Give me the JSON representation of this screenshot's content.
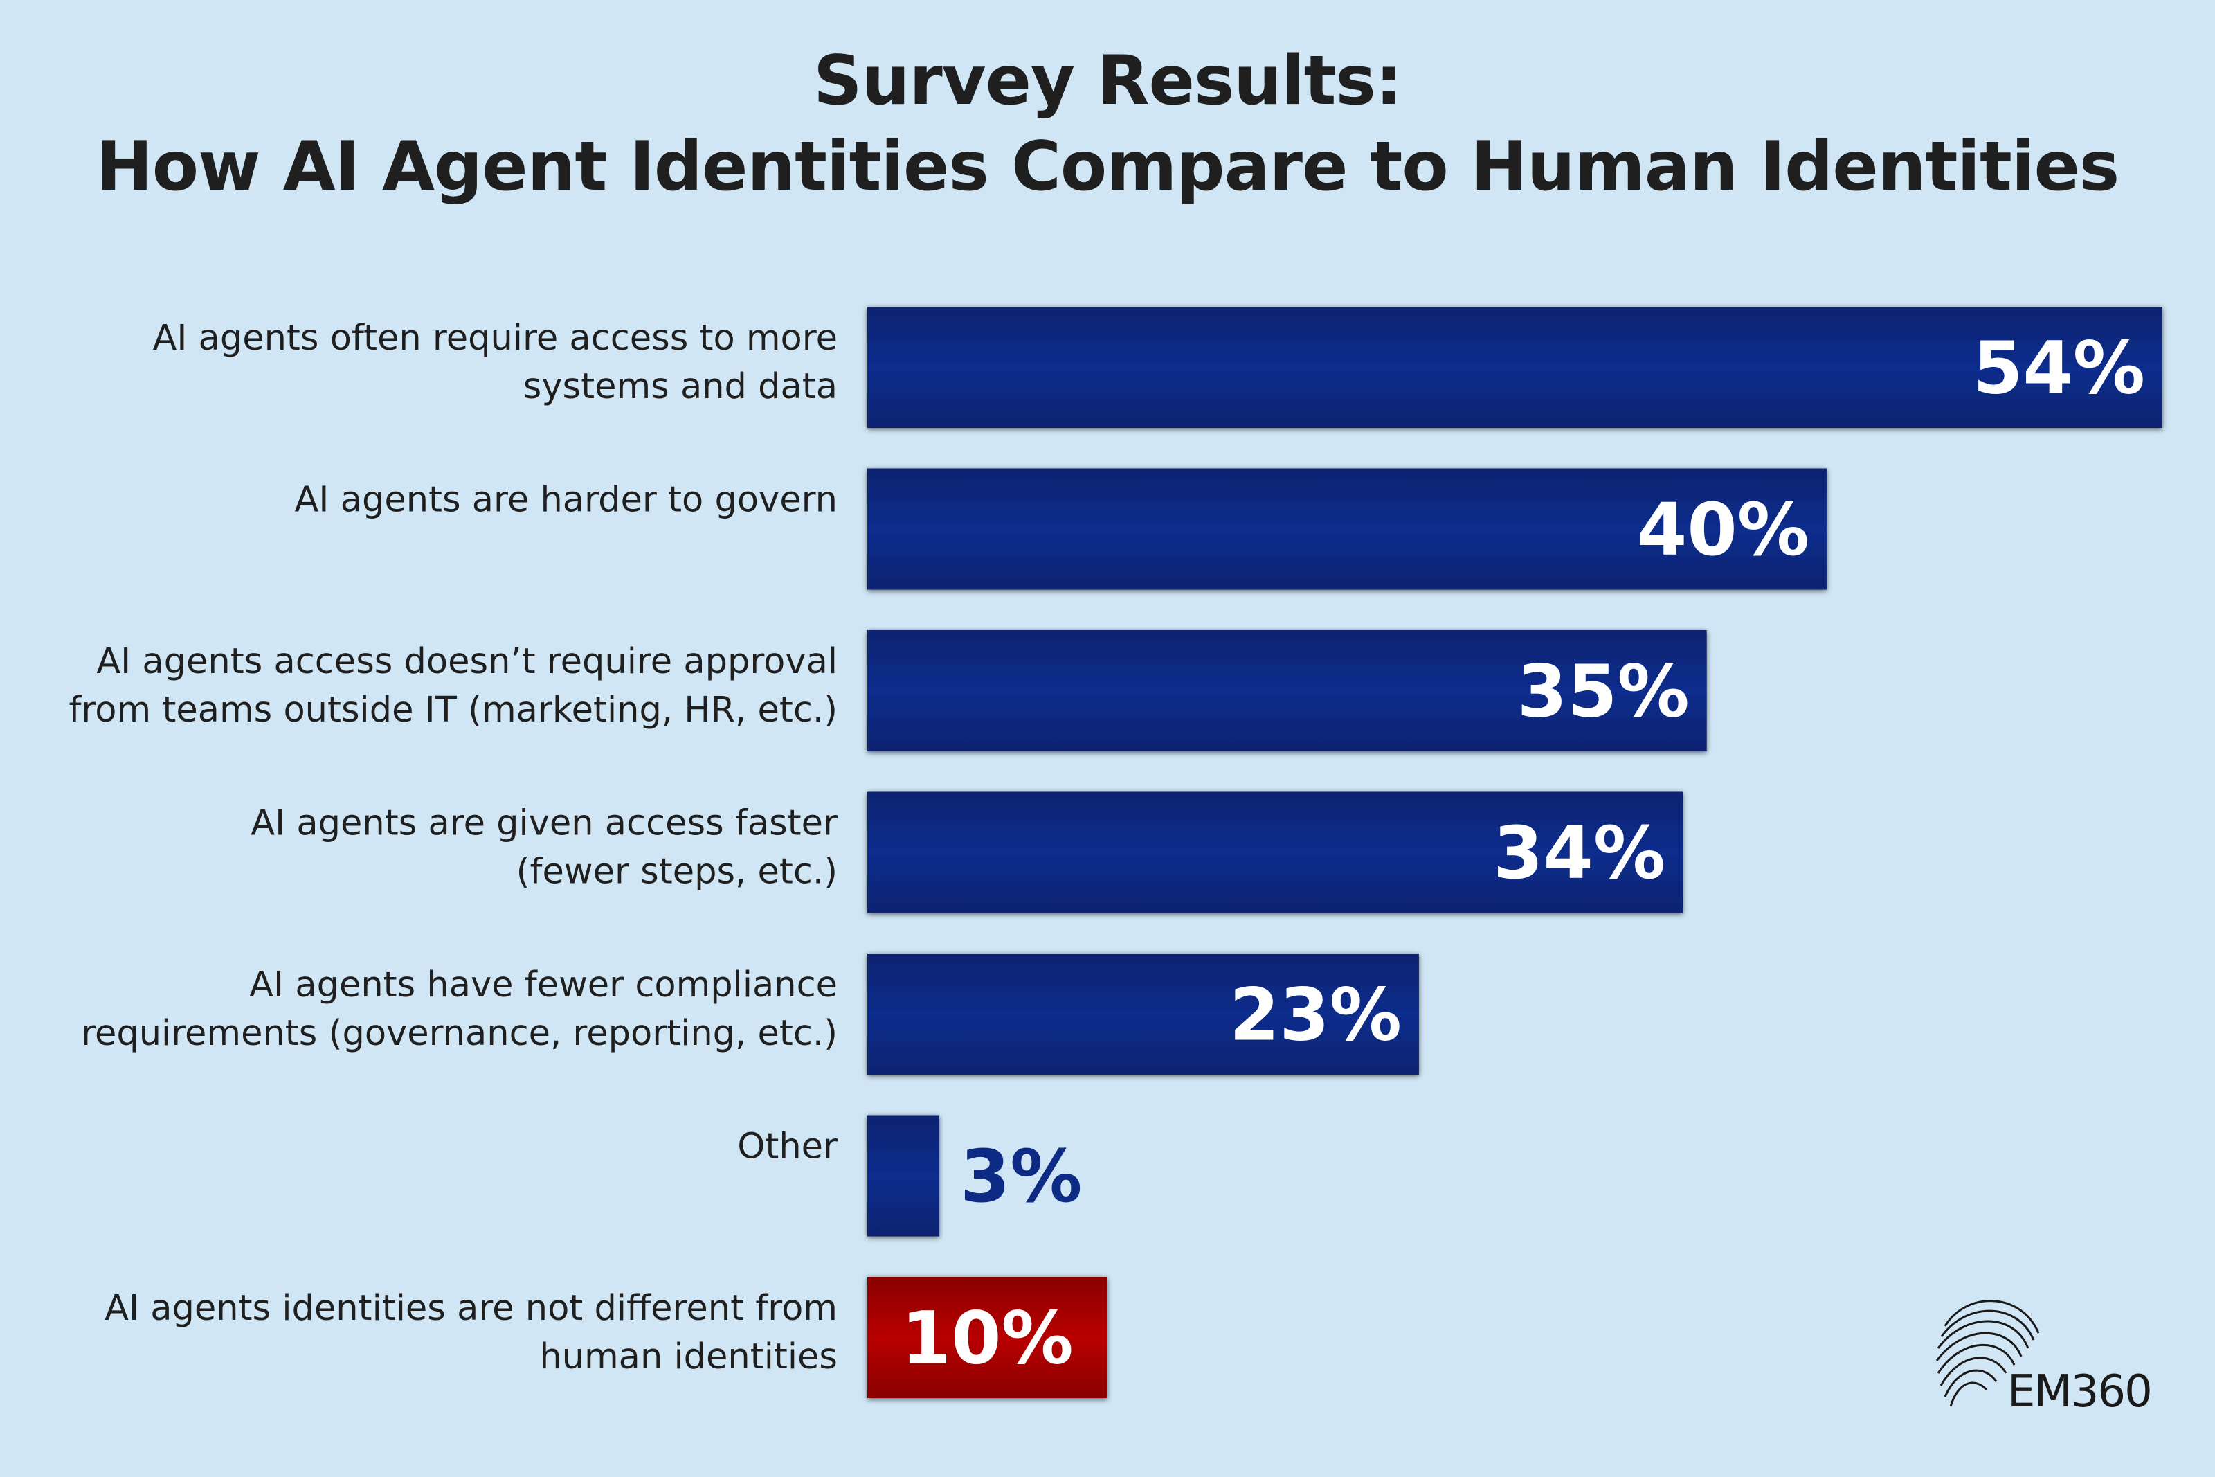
{
  "title": {
    "line1": "Survey Results:",
    "line2": "How AI Agent Identities Compare to Human Identities"
  },
  "colors": {
    "background": "#d0e6f5",
    "bar_primary": "#0d2a84",
    "bar_highlight": "#b10000",
    "value_outside": "#0d2a84",
    "value_inside": "#ffffff"
  },
  "chart_data": {
    "type": "bar",
    "orientation": "horizontal",
    "title": "Survey Results: How AI Agent Identities Compare to Human Identities",
    "xlabel": "",
    "ylabel": "",
    "xlim": [
      0,
      54
    ],
    "grid": false,
    "categories": [
      [
        "AI agents often require access to more",
        "systems and data"
      ],
      [
        "AI agents are harder to govern"
      ],
      [
        "AI agents access doesn’t require approval",
        "from teams outside IT (marketing, HR, etc.)"
      ],
      [
        "AI agents are given access faster",
        "(fewer steps, etc.)"
      ],
      [
        "AI agents have fewer compliance",
        "requirements  (governance, reporting, etc.)"
      ],
      [
        "Other"
      ],
      [
        "AI agents identities are not different from",
        "human identities"
      ]
    ],
    "values": [
      54,
      40,
      35,
      34,
      23,
      3,
      10
    ],
    "value_labels": [
      "54%",
      "40%",
      "35%",
      "34%",
      "23%",
      "3%",
      "10%"
    ],
    "highlight_index": 6
  },
  "logo": {
    "text": "EM360"
  }
}
